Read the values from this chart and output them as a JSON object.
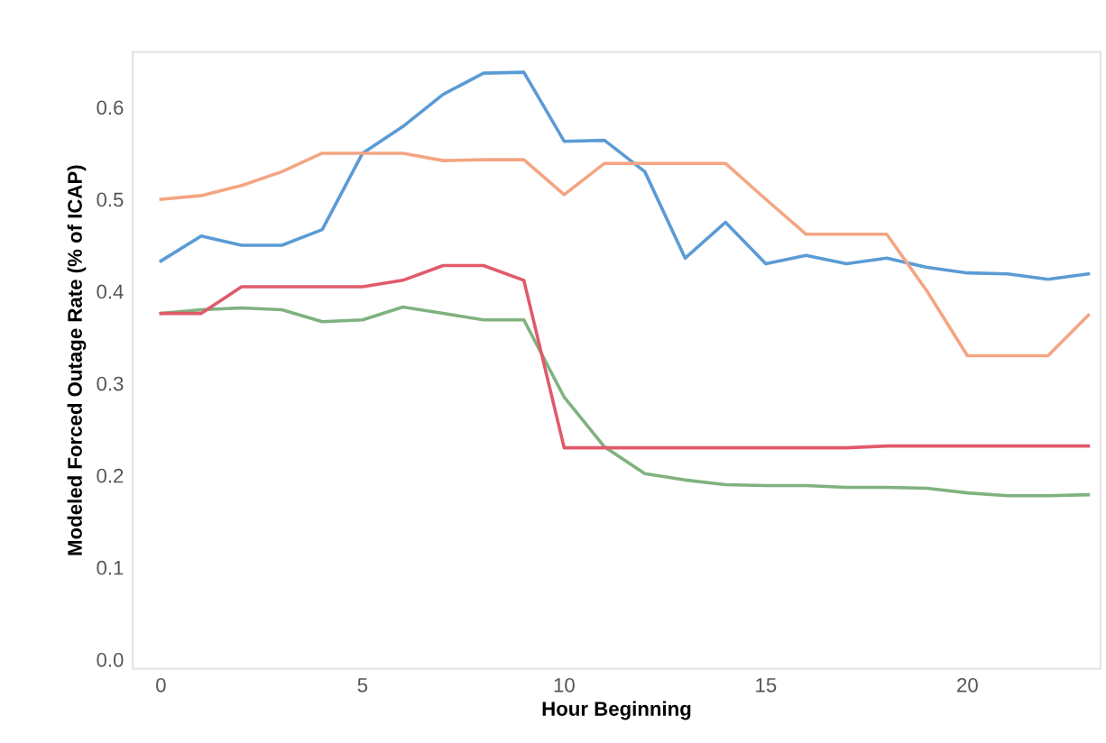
{
  "chart_data": {
    "type": "line",
    "xlabel": "Hour Beginning",
    "ylabel": "Modeled Forced Outage Rate (% of ICAP)",
    "x": [
      0,
      1,
      2,
      3,
      4,
      5,
      6,
      7,
      8,
      9,
      10,
      11,
      12,
      13,
      14,
      15,
      16,
      17,
      18,
      19,
      20,
      21,
      22,
      23
    ],
    "series": [
      {
        "color": "#5b9bd5",
        "values": [
          0.433,
          0.46,
          0.45,
          0.45,
          0.467,
          0.55,
          0.579,
          0.614,
          0.637,
          0.638,
          0.563,
          0.564,
          0.53,
          0.436,
          0.475,
          0.43,
          0.439,
          0.43,
          0.436,
          0.426,
          0.42,
          0.419,
          0.413,
          0.419
        ]
      },
      {
        "color": "#f4a582",
        "values": [
          0.5,
          0.504,
          0.515,
          0.53,
          0.55,
          0.55,
          0.55,
          0.542,
          0.543,
          0.543,
          0.505,
          0.539,
          0.539,
          0.539,
          0.539,
          0.5,
          0.462,
          0.462,
          0.462,
          0.4,
          0.33,
          0.33,
          0.33,
          0.374
        ]
      },
      {
        "color": "#7fb27f",
        "values": [
          0.376,
          0.38,
          0.382,
          0.38,
          0.367,
          0.369,
          0.383,
          0.376,
          0.369,
          0.369,
          0.285,
          0.231,
          0.202,
          0.195,
          0.19,
          0.189,
          0.189,
          0.187,
          0.187,
          0.186,
          0.181,
          0.178,
          0.178,
          0.179
        ]
      },
      {
        "color": "#e05a6b",
        "values": [
          0.376,
          0.376,
          0.405,
          0.405,
          0.405,
          0.405,
          0.412,
          0.428,
          0.428,
          0.412,
          0.23,
          0.23,
          0.23,
          0.23,
          0.23,
          0.23,
          0.23,
          0.23,
          0.232,
          0.232,
          0.232,
          0.232,
          0.232,
          0.232
        ]
      }
    ],
    "xlim": [
      -0.7,
      23.3
    ],
    "ylim": [
      -0.01,
      0.66
    ],
    "xticks": [
      0,
      5,
      10,
      15,
      20
    ],
    "yticks": [
      {
        "value": 0,
        "label": "0.0"
      },
      0.1,
      0.2,
      0.3,
      0.4,
      0.5,
      0.6
    ],
    "grid": false
  }
}
